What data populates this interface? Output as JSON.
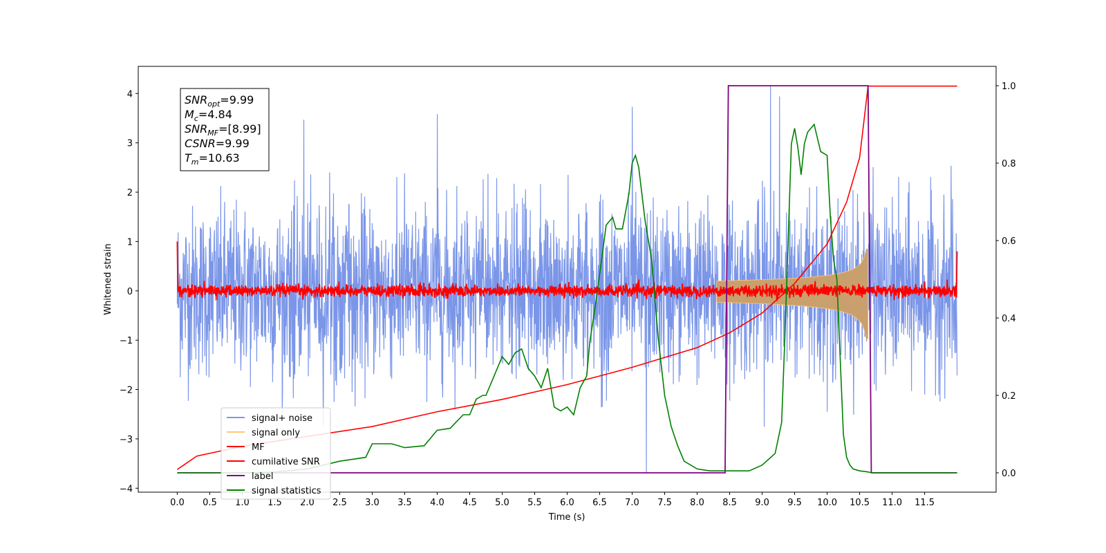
{
  "chart_data": {
    "type": "line",
    "title": "",
    "xlabel": "Time (s)",
    "ylabel": "Whitened strain",
    "y2label": "",
    "xlim": [
      -0.6,
      12.6
    ],
    "ylim": [
      -4.08,
      4.55
    ],
    "y2lim": [
      -0.05,
      1.05
    ],
    "xticks": [
      "0.0",
      "0.5",
      "1.0",
      "1.5",
      "2.0",
      "2.5",
      "3.0",
      "3.5",
      "4.0",
      "4.5",
      "5.0",
      "5.5",
      "6.0",
      "6.5",
      "7.0",
      "7.5",
      "8.0",
      "8.5",
      "9.0",
      "9.5",
      "10.0",
      "10.5",
      "11.0",
      "11.5"
    ],
    "yticks": [
      "4",
      "3",
      "2",
      "1",
      "0",
      "−1",
      "−2",
      "−3",
      "−4"
    ],
    "y2ticks": [
      "1.0",
      "0.8",
      "0.6",
      "0.4",
      "0.2",
      "0.0"
    ],
    "grid": false,
    "legend_position": "lower-left",
    "annotation": {
      "lines": [
        {
          "base": "SNR",
          "sub": "opt",
          "value": "=9.99"
        },
        {
          "base": "M",
          "sub": "c",
          "value": "=4.84"
        },
        {
          "base": "SNR",
          "sub": "MF",
          "value": "=[8.99]"
        },
        {
          "base": "CSNR",
          "sub": "",
          "value": "=9.99"
        },
        {
          "base": "T",
          "sub": "m",
          "value": "=10.63"
        }
      ]
    },
    "series": [
      {
        "name": "signal+ noise",
        "color": "#7b96e8",
        "axis": "left",
        "style": "noise",
        "t_start": 0.0,
        "t_end": 12.0,
        "typical_range": [
          -2.0,
          2.0
        ],
        "extremes": [
          [
            7.22,
            -3.7
          ],
          [
            9.13,
            4.15
          ],
          [
            4.0,
            3.58
          ],
          [
            7.0,
            3.73
          ],
          [
            1.95,
            3.47
          ],
          [
            9.27,
            3.94
          ]
        ]
      },
      {
        "name": "signal only",
        "color": "#ffc775",
        "axis": "left",
        "style": "chirp",
        "t_start": 8.3,
        "t_end": 10.63,
        "peak_amplitude": 0.85
      },
      {
        "name": "MF",
        "color": "#ff0000",
        "axis": "left",
        "style": "noise",
        "t_start": 0.0,
        "t_end": 12.0,
        "typical_range": [
          -0.15,
          0.15
        ],
        "edge_spikes": [
          [
            0.0,
            1.0
          ],
          [
            12.0,
            0.8
          ]
        ]
      },
      {
        "name": "cumilative SNR",
        "color": "#ff0000",
        "axis": "left",
        "style": "line",
        "x": [
          0.0,
          0.3,
          1.0,
          2.0,
          3.0,
          4.0,
          5.0,
          6.0,
          7.0,
          7.5,
          8.0,
          8.5,
          9.0,
          9.5,
          10.0,
          10.3,
          10.5,
          10.63,
          11.0,
          12.0
        ],
        "y": [
          -3.62,
          -3.35,
          -3.15,
          -2.95,
          -2.75,
          -2.45,
          -2.2,
          -1.9,
          -1.55,
          -1.35,
          -1.15,
          -0.85,
          -0.45,
          0.15,
          0.95,
          1.8,
          2.7,
          4.15,
          4.15,
          4.15
        ]
      },
      {
        "name": "label",
        "color": "#800080",
        "axis": "right",
        "style": "line",
        "x": [
          0.0,
          8.43,
          8.48,
          10.63,
          10.68,
          12.0
        ],
        "y": [
          0.0,
          0.0,
          1.0,
          1.0,
          0.0,
          0.0
        ]
      },
      {
        "name": "signal statistics",
        "color": "#008000",
        "axis": "right",
        "style": "line",
        "x": [
          0.0,
          0.5,
          1.0,
          1.5,
          2.0,
          2.5,
          2.7,
          2.9,
          3.0,
          3.3,
          3.5,
          3.8,
          4.0,
          4.2,
          4.4,
          4.5,
          4.6,
          4.7,
          4.75,
          4.9,
          5.0,
          5.1,
          5.2,
          5.3,
          5.4,
          5.5,
          5.6,
          5.7,
          5.8,
          5.9,
          6.0,
          6.1,
          6.2,
          6.3,
          6.35,
          6.45,
          6.6,
          6.7,
          6.75,
          6.85,
          6.95,
          7.0,
          7.05,
          7.1,
          7.2,
          7.3,
          7.4,
          7.5,
          7.6,
          7.7,
          7.8,
          8.0,
          8.2,
          8.5,
          8.8,
          9.0,
          9.2,
          9.3,
          9.35,
          9.4,
          9.45,
          9.5,
          9.55,
          9.6,
          9.65,
          9.7,
          9.8,
          9.9,
          10.0,
          10.05,
          10.1,
          10.15,
          10.2,
          10.25,
          10.3,
          10.35,
          10.4,
          10.5,
          10.6,
          10.7,
          10.8,
          11.0,
          12.0
        ],
        "y": [
          0.0,
          0.0,
          0.0,
          0.002,
          0.01,
          0.03,
          0.035,
          0.04,
          0.075,
          0.075,
          0.065,
          0.07,
          0.11,
          0.115,
          0.15,
          0.15,
          0.19,
          0.2,
          0.2,
          0.26,
          0.3,
          0.28,
          0.31,
          0.32,
          0.27,
          0.25,
          0.22,
          0.27,
          0.17,
          0.16,
          0.17,
          0.15,
          0.22,
          0.25,
          0.34,
          0.45,
          0.64,
          0.66,
          0.63,
          0.63,
          0.72,
          0.8,
          0.82,
          0.79,
          0.65,
          0.55,
          0.35,
          0.2,
          0.12,
          0.07,
          0.03,
          0.01,
          0.005,
          0.005,
          0.005,
          0.02,
          0.05,
          0.13,
          0.35,
          0.6,
          0.85,
          0.89,
          0.84,
          0.77,
          0.85,
          0.88,
          0.9,
          0.83,
          0.82,
          0.66,
          0.55,
          0.5,
          0.3,
          0.1,
          0.04,
          0.02,
          0.01,
          0.005,
          0.003,
          0.0,
          0.0,
          0.0,
          0.0
        ]
      }
    ]
  }
}
